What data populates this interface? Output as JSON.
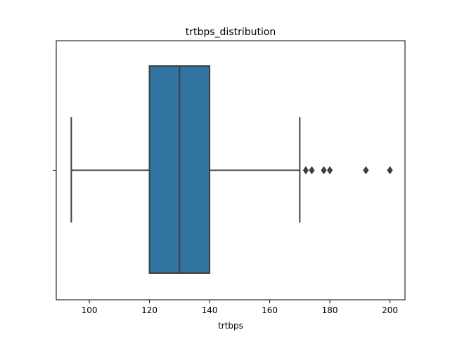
{
  "chart_data": {
    "type": "box",
    "title": "trtbps_distribution",
    "xlabel": "trtbps",
    "ylabel": "",
    "xlim": [
      89,
      205
    ],
    "xticks": [
      100,
      120,
      140,
      160,
      180,
      200
    ],
    "xtick_labels": [
      "100",
      "120",
      "140",
      "160",
      "180",
      "200"
    ],
    "grid": false,
    "series": [
      {
        "name": "trtbps",
        "whisker_low": 94,
        "q1": 120,
        "median": 130,
        "q3": 140,
        "whisker_high": 170,
        "outliers": [
          172,
          174,
          178,
          180,
          192,
          200
        ]
      }
    ]
  },
  "colors": {
    "box_fill": "#3274a1",
    "line": "#3f3f3f",
    "frame": "#000000"
  }
}
